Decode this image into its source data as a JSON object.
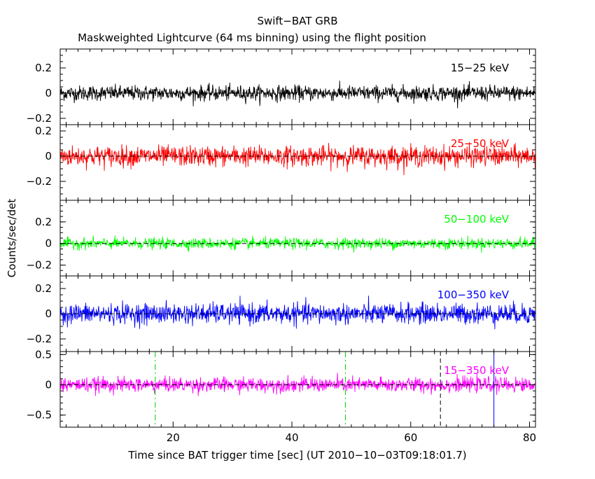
{
  "chart_data": {
    "type": "line",
    "title": "Swift−BAT GRB",
    "subtitle": "Maskweighted Lightcurve (64 ms binning) using the flight position",
    "xlabel": "Time since BAT trigger time [sec] (UT 2010−10−03T09:18:01.7)",
    "ylabel": "Counts/sec/det",
    "xlim": [
      1,
      81
    ],
    "x_ticks": [
      20,
      40,
      60,
      80
    ],
    "bin_width_s": 0.064,
    "grid": false,
    "panels": [
      {
        "name": "15−25 keV",
        "color": "#000000",
        "ylim": [
          -0.25,
          0.35
        ],
        "y_ticks": [
          0.2,
          0,
          -0.2
        ],
        "y_tick_labels": [
          "0.2",
          "0",
          "−0.2"
        ],
        "mean": 0.0,
        "noise_sigma": 0.03,
        "noise_max": 0.12
      },
      {
        "name": "25−50 keV",
        "color": "#ff0000",
        "ylim": [
          -0.35,
          0.25
        ],
        "y_ticks": [
          0.2,
          0,
          -0.2
        ],
        "y_tick_labels": [
          "0.2",
          "0",
          "−0.2"
        ],
        "mean": 0.0,
        "noise_sigma": 0.04,
        "noise_max": 0.17
      },
      {
        "name": "50−100 keV",
        "color": "#00ff00",
        "ylim": [
          -0.3,
          0.4
        ],
        "y_ticks": [
          0.2,
          0,
          -0.2
        ],
        "y_tick_labels": [
          "0.2",
          "0",
          "−0.2"
        ],
        "mean": 0.0,
        "noise_sigma": 0.025,
        "noise_max": 0.1
      },
      {
        "name": "100−350 keV",
        "color": "#0000ff",
        "ylim": [
          -0.3,
          0.3
        ],
        "y_ticks": [
          0.2,
          0,
          -0.2
        ],
        "y_tick_labels": [
          "0.2",
          "0",
          "−0.2"
        ],
        "mean": 0.0,
        "noise_sigma": 0.04,
        "noise_max": 0.15
      },
      {
        "name": "15−350 keV",
        "color": "#ff00ff",
        "ylim": [
          -0.7,
          0.55
        ],
        "y_ticks": [
          0.5,
          0,
          -0.5
        ],
        "y_tick_labels": [
          "0.5",
          "0",
          "−0.5"
        ],
        "mean": 0.0,
        "noise_sigma": 0.06,
        "noise_max": 0.25
      }
    ],
    "markers": [
      {
        "kind": "T100 start",
        "x": 17.0,
        "color": "#00cc00",
        "style": "dashdot"
      },
      {
        "kind": "T100 end",
        "x": 49.0,
        "color": "#00cc00",
        "style": "dashdot"
      },
      {
        "kind": "dashed reference",
        "x": 65.0,
        "color": "#000000",
        "style": "dashed"
      },
      {
        "kind": "solid reference",
        "x": 74.0,
        "color": "#0000ff",
        "style": "solid"
      }
    ]
  }
}
